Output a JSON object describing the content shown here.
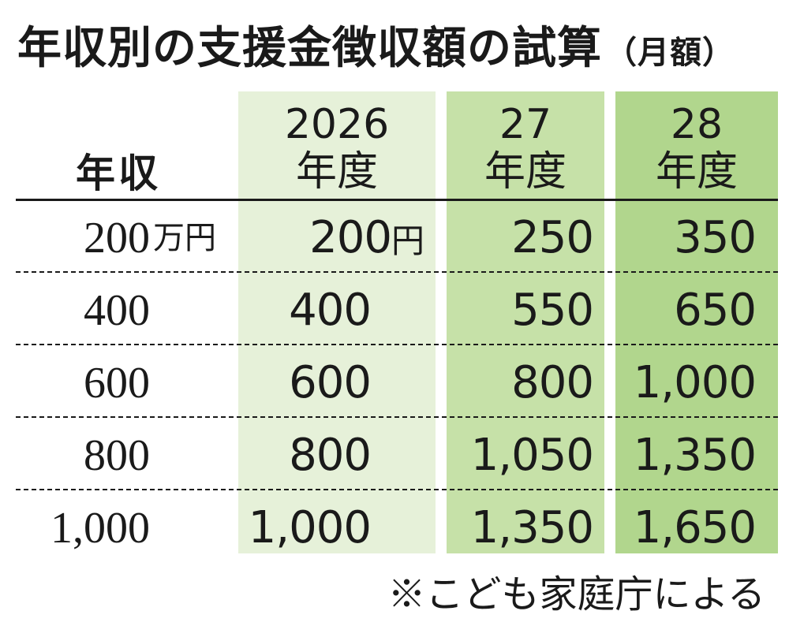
{
  "title": "年収別の支援金徴収額の試算",
  "title_suffix": "（月額）",
  "row_header": "年収",
  "income_unit": "万円",
  "value_unit": "円",
  "columns": [
    {
      "year": "2026",
      "suffix": "年度"
    },
    {
      "year": "27",
      "suffix": "年度"
    },
    {
      "year": "28",
      "suffix": "年度"
    }
  ],
  "note": "※こども家庭庁による",
  "colors": {
    "band_2026": "#e6f1d9",
    "band_27": "#c6e1a8",
    "band_28": "#b1d68d",
    "text": "#1a1a1a"
  },
  "chart_data": {
    "type": "table",
    "title": "年収別の支援金徴収額の試算（月額）",
    "row_label": "年収",
    "rows": [
      "200",
      "400",
      "600",
      "800",
      "1,000"
    ],
    "row_unit": "万円",
    "columns": [
      "2026年度",
      "27年度",
      "28年度"
    ],
    "value_unit": "円",
    "values": [
      [
        "200",
        "250",
        "350"
      ],
      [
        "400",
        "550",
        "650"
      ],
      [
        "600",
        "800",
        "1,000"
      ],
      [
        "800",
        "1,050",
        "1,350"
      ],
      [
        "1,000",
        "1,350",
        "1,650"
      ]
    ],
    "source": "※こども家庭庁による"
  }
}
